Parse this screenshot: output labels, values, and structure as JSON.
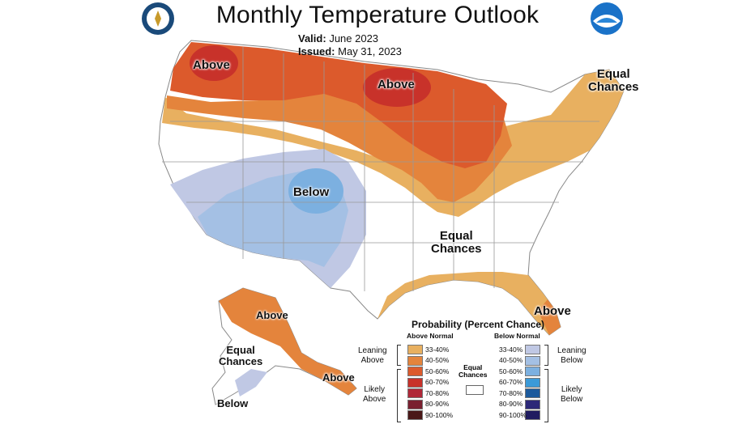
{
  "title": "Monthly Temperature Outlook",
  "valid_label": "Valid:",
  "valid_value": "June 2023",
  "issued_label": "Issued:",
  "issued_value": "May 31, 2023",
  "logos": {
    "left": "doc-seal-icon",
    "right": "noaa-logo-icon"
  },
  "map_labels": {
    "above_pnw": "Above",
    "above_north": "Above",
    "equal_ne_1": "Equal",
    "equal_ne_2": "Chances",
    "below_sw": "Below",
    "equal_south_1": "Equal",
    "equal_south_2": "Chances",
    "above_fl": "Above",
    "above_ak": "Above",
    "equal_ak_1": "Equal",
    "equal_ak_2": "Chances",
    "above_ak_se": "Above",
    "below_ak": "Below"
  },
  "legend": {
    "title": "Probability (Percent Chance)",
    "above_heading": "Above Normal",
    "below_heading": "Below Normal",
    "equal_1": "Equal",
    "equal_2": "Chances",
    "above_bins": [
      {
        "label": "33-40%",
        "color": "#e8b060"
      },
      {
        "label": "40-50%",
        "color": "#e4843c"
      },
      {
        "label": "50-60%",
        "color": "#dc5a2c"
      },
      {
        "label": "60-70%",
        "color": "#c8322a"
      },
      {
        "label": "70-80%",
        "color": "#b02838"
      },
      {
        "label": "80-90%",
        "color": "#7a2030"
      },
      {
        "label": "90-100%",
        "color": "#4a1818"
      }
    ],
    "below_bins": [
      {
        "label": "33-40%",
        "color": "#c0c8e4"
      },
      {
        "label": "40-50%",
        "color": "#a4c0e4"
      },
      {
        "label": "50-60%",
        "color": "#7cb0e0"
      },
      {
        "label": "60-70%",
        "color": "#3c9ad8"
      },
      {
        "label": "70-80%",
        "color": "#1c5a9c"
      },
      {
        "label": "80-90%",
        "color": "#2c2878"
      },
      {
        "label": "90-100%",
        "color": "#201c60"
      }
    ],
    "leaning_above_1": "Leaning",
    "leaning_above_2": "Above",
    "likely_above_1": "Likely",
    "likely_above_2": "Above",
    "leaning_below_1": "Leaning",
    "leaning_below_2": "Below",
    "likely_below_1": "Likely",
    "likely_below_2": "Below"
  }
}
